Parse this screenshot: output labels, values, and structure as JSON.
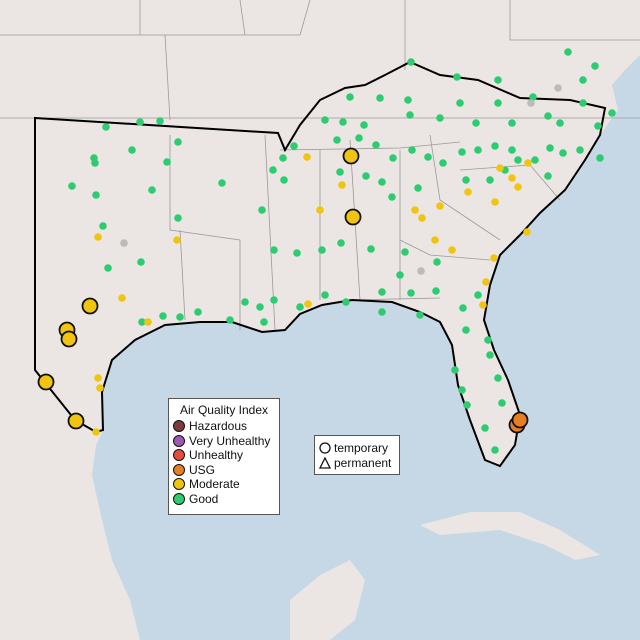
{
  "legend": {
    "title": "Air Quality Index",
    "items": [
      {
        "label": "Hazardous",
        "color": "#7e3b3b"
      },
      {
        "label": "Very Unhealthy",
        "color": "#9b59b6"
      },
      {
        "label": "Unhealthy",
        "color": "#e74c3c"
      },
      {
        "label": "USG",
        "color": "#e67e22"
      },
      {
        "label": "Moderate",
        "color": "#f1c40f"
      },
      {
        "label": "Good",
        "color": "#2ecc71"
      }
    ]
  },
  "monitor_types": [
    {
      "label": "temporary",
      "icon": "circle-icon"
    },
    {
      "label": "permanent",
      "icon": "triangle-icon"
    }
  ],
  "colors": {
    "land": "#ebe6e3",
    "water": "#c6d7e6",
    "offline": "#bbbbbb"
  }
}
